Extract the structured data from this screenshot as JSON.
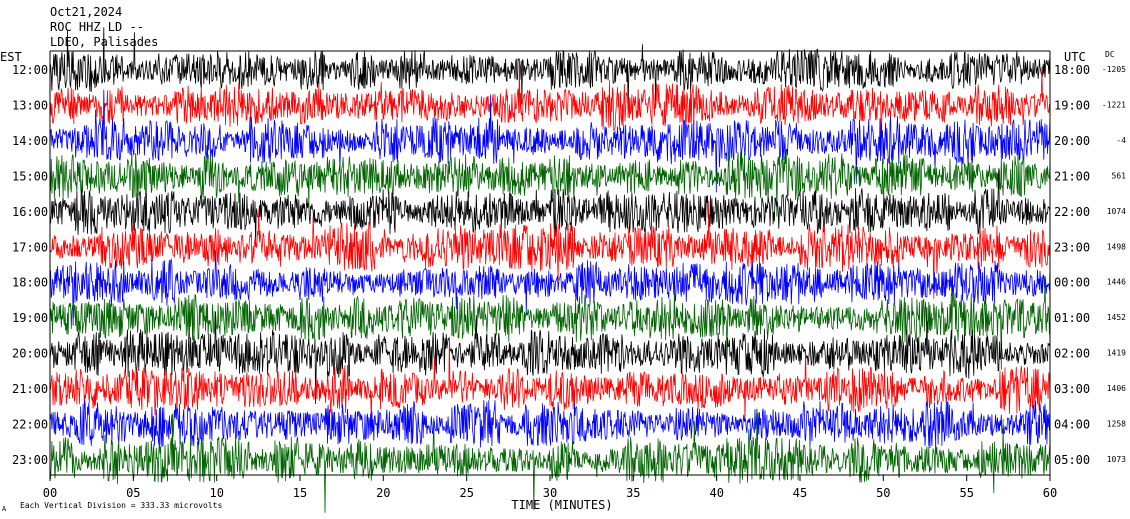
{
  "header": {
    "date": "Oct21,2024",
    "station": "ROC HHZ LD --",
    "location": "LDEO, Palisades"
  },
  "labels": {
    "left_zone": "EST",
    "right_zone": "UTC",
    "dc_header": "DC",
    "footer_scale": "Each Vertical Division = 333.33 microvolts",
    "footer_marker": "A"
  },
  "colors": {
    "trace_cycle": [
      "#000000",
      "#ff0000",
      "#0000ff",
      "#006400"
    ],
    "axis": "#000000",
    "background": "#ffffff"
  },
  "chart_data": {
    "type": "line",
    "subtype": "helicorder",
    "xlabel": "TIME (MINUTES)",
    "xlim": [
      0,
      60
    ],
    "x_ticks": [
      "00",
      "05",
      "10",
      "15",
      "20",
      "25",
      "30",
      "35",
      "40",
      "45",
      "50",
      "55",
      "60"
    ],
    "x_tick_values": [
      0,
      5,
      10,
      15,
      20,
      25,
      30,
      35,
      40,
      45,
      50,
      55,
      60
    ],
    "rows": [
      {
        "est": "12:00",
        "utc": "18:00",
        "dc": "-1205",
        "color": "#000000"
      },
      {
        "est": "13:00",
        "utc": "19:00",
        "dc": "-1221",
        "color": "#ff0000"
      },
      {
        "est": "14:00",
        "utc": "20:00",
        "dc": "-4",
        "color": "#0000ff"
      },
      {
        "est": "15:00",
        "utc": "21:00",
        "dc": "561",
        "color": "#006400"
      },
      {
        "est": "16:00",
        "utc": "22:00",
        "dc": "1074",
        "color": "#000000"
      },
      {
        "est": "17:00",
        "utc": "23:00",
        "dc": "1498",
        "color": "#ff0000"
      },
      {
        "est": "18:00",
        "utc": "00:00",
        "dc": "1446",
        "color": "#0000ff"
      },
      {
        "est": "19:00",
        "utc": "01:00",
        "dc": "1452",
        "color": "#006400"
      },
      {
        "est": "20:00",
        "utc": "02:00",
        "dc": "1419",
        "color": "#000000"
      },
      {
        "est": "21:00",
        "utc": "03:00",
        "dc": "1406",
        "color": "#ff0000"
      },
      {
        "est": "22:00",
        "utc": "04:00",
        "dc": "1258",
        "color": "#0000ff"
      },
      {
        "est": "23:00",
        "utc": "05:00",
        "dc": "1073",
        "color": "#006400"
      }
    ]
  }
}
